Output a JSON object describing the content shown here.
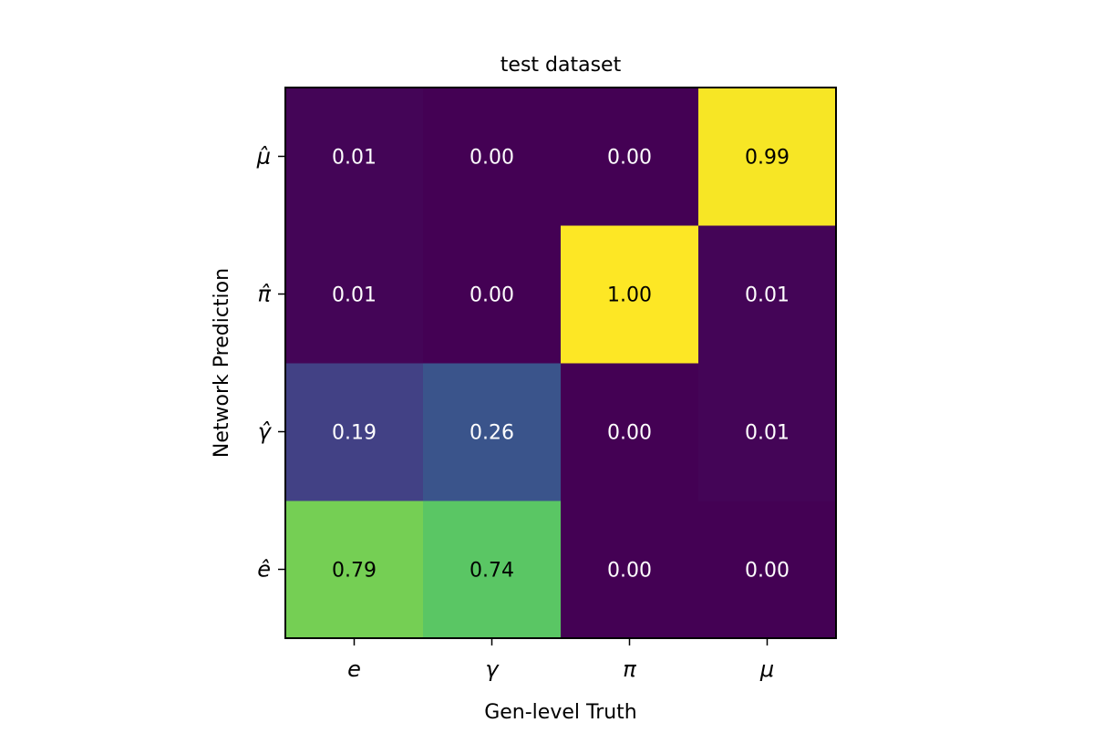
{
  "chart_data": {
    "type": "heatmap",
    "title": "test dataset",
    "xlabel": "Gen-level Truth",
    "ylabel": "Network Prediction",
    "x_categories": [
      "e",
      "γ",
      "π",
      "μ"
    ],
    "y_categories": [
      "ê",
      "γ̂",
      "π̂",
      "μ̂"
    ],
    "values": [
      [
        0.79,
        0.74,
        0.0,
        0.0
      ],
      [
        0.19,
        0.26,
        0.0,
        0.01
      ],
      [
        0.01,
        0.0,
        1.0,
        0.01
      ],
      [
        0.01,
        0.0,
        0.0,
        0.99
      ]
    ],
    "value_labels": [
      [
        "0.79",
        "0.74",
        "0.00",
        "0.00"
      ],
      [
        "0.19",
        "0.26",
        "0.00",
        "0.01"
      ],
      [
        "0.01",
        "0.00",
        "1.00",
        "0.01"
      ],
      [
        "0.01",
        "0.00",
        "0.00",
        "0.99"
      ]
    ],
    "colormap": "viridis",
    "vmin": 0,
    "vmax": 1,
    "grid": false,
    "legend": "none"
  }
}
